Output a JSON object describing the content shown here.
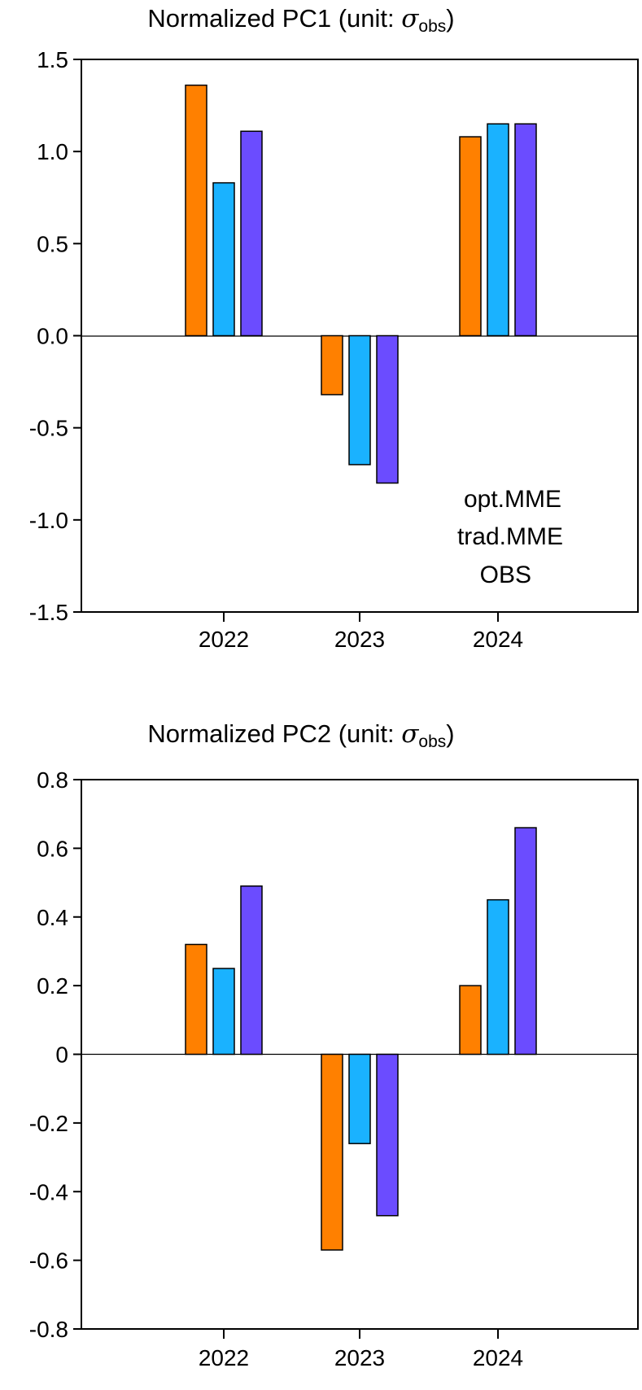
{
  "chart_data": [
    {
      "type": "bar",
      "title_main": "Normalized PC1 (unit: ",
      "title_sigma": "σ",
      "title_sub": "obs",
      "title_close": ")",
      "categories": [
        "2022",
        "2023",
        "2024"
      ],
      "series": [
        {
          "name": "OBS",
          "color": "#FF8000",
          "values": [
            1.36,
            -0.32,
            1.08
          ]
        },
        {
          "name": "trad.MME",
          "color": "#1AB2FF",
          "values": [
            0.83,
            -0.7,
            1.15
          ]
        },
        {
          "name": "opt.MME",
          "color": "#6B4CFF",
          "values": [
            1.11,
            -0.8,
            1.15
          ]
        }
      ],
      "ylim": [
        -1.5,
        1.5
      ],
      "yticks": [
        -1.5,
        -1.0,
        -0.5,
        0.0,
        0.5,
        1.0,
        1.5
      ],
      "ytick_labels": [
        "-1.5",
        "-1.0",
        "-0.5",
        "0.0",
        "0.5",
        "1.0",
        "1.5"
      ],
      "legend": {
        "position": "lower-right",
        "entries": [
          "opt.MME",
          "trad.MME",
          "OBS"
        ]
      },
      "grid": false
    },
    {
      "type": "bar",
      "title_main": "Normalized PC2 (unit: ",
      "title_sigma": "σ",
      "title_sub": "obs",
      "title_close": ")",
      "categories": [
        "2022",
        "2023",
        "2024"
      ],
      "series": [
        {
          "name": "OBS",
          "color": "#FF8000",
          "values": [
            0.32,
            -0.57,
            0.2
          ]
        },
        {
          "name": "trad.MME",
          "color": "#1AB2FF",
          "values": [
            0.25,
            -0.26,
            0.45
          ]
        },
        {
          "name": "opt.MME",
          "color": "#6B4CFF",
          "values": [
            0.49,
            -0.47,
            0.66
          ]
        }
      ],
      "ylim": [
        -0.8,
        0.8
      ],
      "yticks": [
        -0.8,
        -0.6,
        -0.4,
        -0.2,
        0,
        0.2,
        0.4,
        0.6,
        0.8
      ],
      "ytick_labels": [
        "-0.8",
        "-0.6",
        "-0.4",
        "-0.2",
        "0",
        "0.2",
        "0.4",
        "0.6",
        "0.8"
      ],
      "grid": false
    }
  ]
}
